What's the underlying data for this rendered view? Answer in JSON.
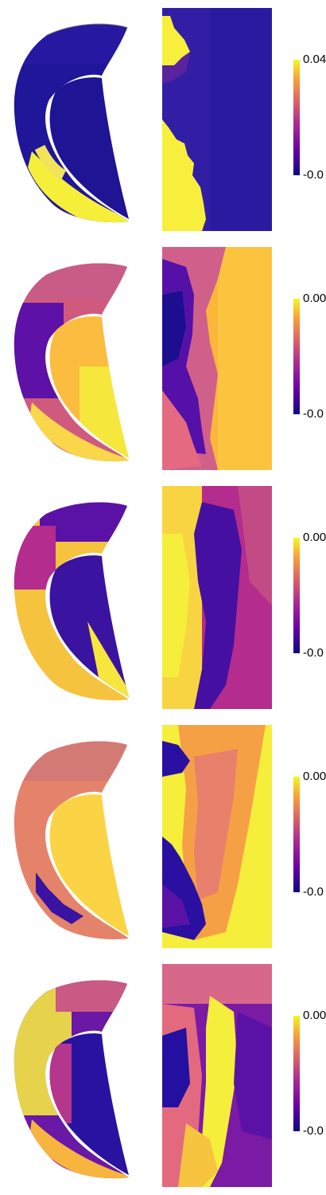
{
  "panels": [
    {
      "cb_max": "0.04",
      "cb_min": "-0.0"
    },
    {
      "cb_max": "0.00",
      "cb_min": "-0.0"
    },
    {
      "cb_max": "0.00",
      "cb_min": "-0.0"
    },
    {
      "cb_max": "0.00",
      "cb_min": "-0.0"
    },
    {
      "cb_max": "0.00",
      "cb_min": "-0.0"
    }
  ],
  "colormap": [
    "#0d0887",
    "#6a00a8",
    "#b12a90",
    "#e16462",
    "#fca636",
    "#f0f921"
  ]
}
